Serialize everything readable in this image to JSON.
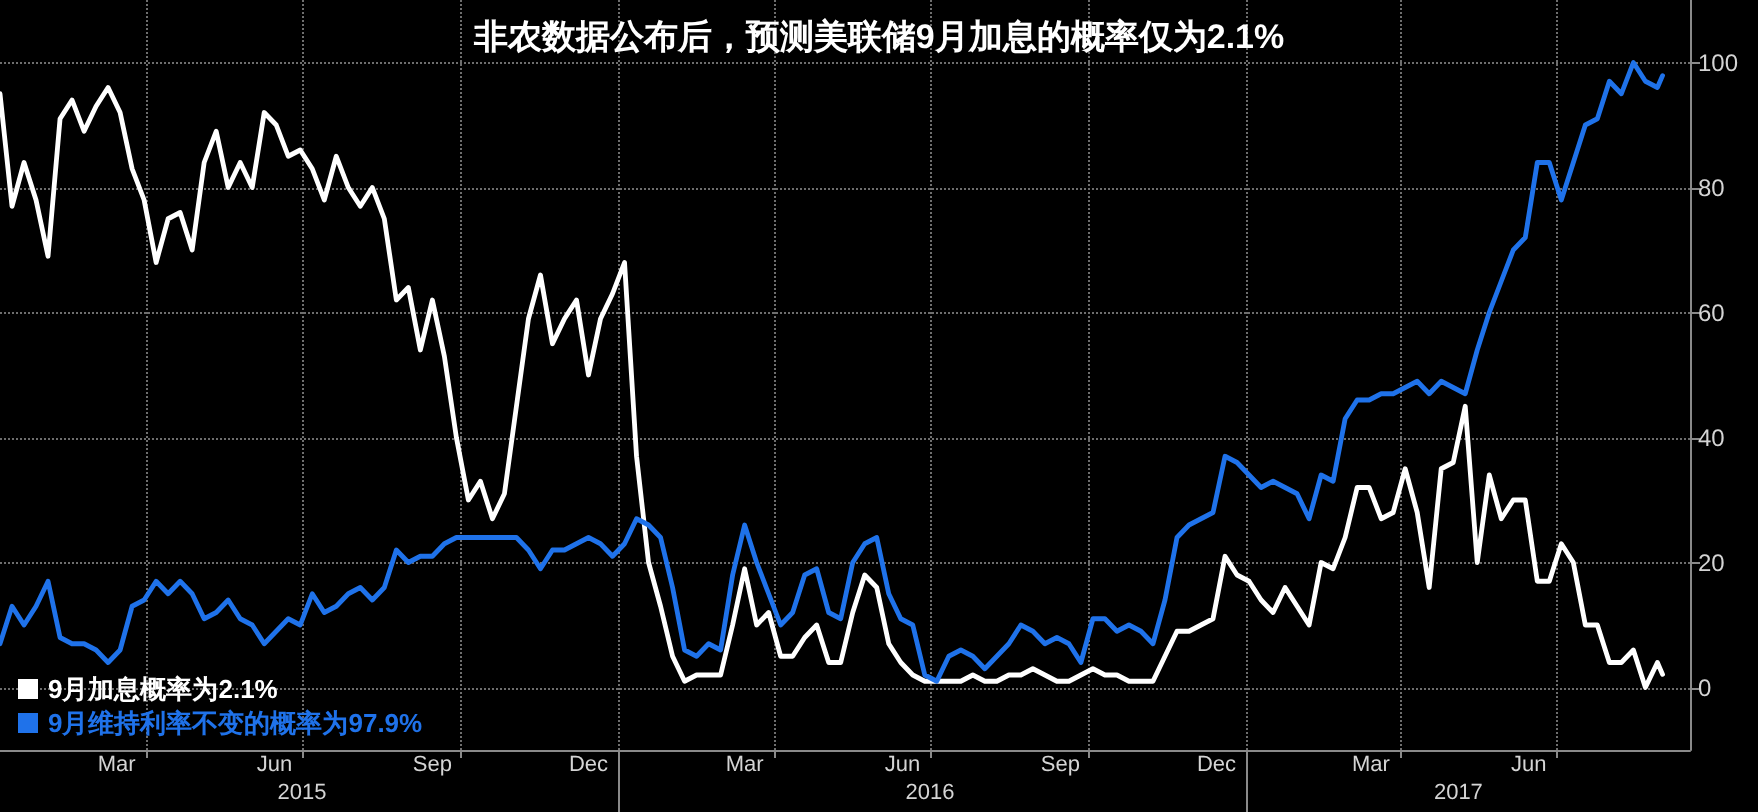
{
  "chart_data": {
    "type": "line",
    "title": "非农数据公布后，预测美联储9月加息的概率仅为2.1%",
    "x": [
      "2015-01-06",
      "2015-01-13",
      "2015-01-20",
      "2015-01-27",
      "2015-02-03",
      "2015-02-10",
      "2015-02-17",
      "2015-02-24",
      "2015-03-03",
      "2015-03-10",
      "2015-03-17",
      "2015-03-24",
      "2015-03-31",
      "2015-04-07",
      "2015-04-14",
      "2015-04-21",
      "2015-04-28",
      "2015-05-05",
      "2015-05-12",
      "2015-05-19",
      "2015-05-26",
      "2015-06-02",
      "2015-06-09",
      "2015-06-16",
      "2015-06-23",
      "2015-06-30",
      "2015-07-07",
      "2015-07-14",
      "2015-07-21",
      "2015-07-28",
      "2015-08-04",
      "2015-08-11",
      "2015-08-18",
      "2015-08-25",
      "2015-09-01",
      "2015-09-08",
      "2015-09-15",
      "2015-09-22",
      "2015-09-29",
      "2015-10-06",
      "2015-10-13",
      "2015-10-20",
      "2015-10-27",
      "2015-11-03",
      "2015-11-10",
      "2015-11-17",
      "2015-11-24",
      "2015-12-01",
      "2015-12-08",
      "2015-12-15",
      "2015-12-22",
      "2015-12-29",
      "2016-01-05",
      "2016-01-12",
      "2016-01-19",
      "2016-01-26",
      "2016-02-02",
      "2016-02-09",
      "2016-02-16",
      "2016-02-23",
      "2016-03-01",
      "2016-03-08",
      "2016-03-15",
      "2016-03-22",
      "2016-03-29",
      "2016-04-05",
      "2016-04-12",
      "2016-04-19",
      "2016-04-26",
      "2016-05-03",
      "2016-05-10",
      "2016-05-17",
      "2016-05-24",
      "2016-05-31",
      "2016-06-07",
      "2016-06-14",
      "2016-06-21",
      "2016-06-28",
      "2016-07-05",
      "2016-07-12",
      "2016-07-19",
      "2016-07-26",
      "2016-08-02",
      "2016-08-09",
      "2016-08-16",
      "2016-08-23",
      "2016-08-30",
      "2016-09-06",
      "2016-09-13",
      "2016-09-20",
      "2016-09-27",
      "2016-10-04",
      "2016-10-11",
      "2016-10-18",
      "2016-10-25",
      "2016-11-01",
      "2016-11-08",
      "2016-11-15",
      "2016-11-22",
      "2016-11-29",
      "2016-12-06",
      "2016-12-13",
      "2016-12-20",
      "2016-12-27",
      "2017-01-03",
      "2017-01-10",
      "2017-01-17",
      "2017-01-24",
      "2017-01-31",
      "2017-02-07",
      "2017-02-14",
      "2017-02-21",
      "2017-02-28",
      "2017-03-07",
      "2017-03-14",
      "2017-03-21",
      "2017-03-28",
      "2017-04-04",
      "2017-04-11",
      "2017-04-18",
      "2017-04-25",
      "2017-05-02",
      "2017-05-09",
      "2017-05-16",
      "2017-05-23",
      "2017-05-30",
      "2017-06-06",
      "2017-06-13",
      "2017-06-20",
      "2017-06-27",
      "2017-07-04",
      "2017-07-11",
      "2017-07-18",
      "2017-07-25",
      "2017-08-01",
      "2017-08-08",
      "2017-08-15",
      "2017-08-22",
      "2017-08-29",
      "2017-09-01"
    ],
    "series": [
      {
        "name": "9月加息概率为2.1%",
        "color": "#ffffff",
        "values": [
          95,
          77,
          84,
          78,
          69,
          91,
          94,
          89,
          93,
          96,
          92,
          83,
          78,
          68,
          75,
          76,
          70,
          84,
          89,
          80,
          84,
          80,
          92,
          90,
          85,
          86,
          83,
          78,
          85,
          80,
          77,
          80,
          75,
          62,
          64,
          54,
          62,
          53,
          40,
          30,
          33,
          27,
          31,
          45,
          59,
          66,
          55,
          59,
          62,
          50,
          59,
          63,
          68,
          37,
          20,
          13,
          5,
          1,
          2,
          2,
          2,
          10,
          19,
          10,
          12,
          5,
          5,
          8,
          10,
          4,
          4,
          12,
          18,
          16,
          7,
          4,
          2,
          1,
          1,
          1,
          1,
          2,
          1,
          1,
          2,
          2,
          3,
          2,
          1,
          1,
          2,
          3,
          2,
          2,
          1,
          1,
          1,
          5,
          9,
          9,
          10,
          11,
          21,
          18,
          17,
          14,
          12,
          16,
          13,
          10,
          20,
          19,
          24,
          32,
          32,
          27,
          28,
          35,
          28,
          16,
          35,
          36,
          45,
          20,
          34,
          27,
          30,
          30,
          17,
          17,
          23,
          20,
          10,
          10,
          4,
          4,
          6,
          0,
          4,
          2.1
        ]
      },
      {
        "name": "9月维持利率不变的概率为97.9%",
        "color": "#1f72ea",
        "values": [
          7,
          13,
          10,
          13,
          17,
          8,
          7,
          7,
          6,
          4,
          6,
          13,
          14,
          17,
          15,
          17,
          15,
          11,
          12,
          14,
          11,
          10,
          7,
          9,
          11,
          10,
          15,
          12,
          13,
          15,
          16,
          14,
          16,
          22,
          20,
          21,
          21,
          23,
          24,
          24,
          24,
          24,
          24,
          24,
          22,
          19,
          22,
          22,
          23,
          24,
          23,
          21,
          23,
          27,
          26,
          24,
          16,
          6,
          5,
          7,
          6,
          18,
          26,
          20,
          15,
          10,
          12,
          18,
          19,
          12,
          11,
          20,
          23,
          24,
          15,
          11,
          10,
          2,
          1,
          5,
          6,
          5,
          3,
          5,
          7,
          10,
          9,
          7,
          8,
          7,
          4,
          11,
          11,
          9,
          10,
          9,
          7,
          14,
          24,
          26,
          27,
          28,
          37,
          36,
          34,
          32,
          33,
          32,
          31,
          27,
          34,
          33,
          43,
          46,
          46,
          47,
          47,
          48,
          49,
          47,
          49,
          48,
          47,
          54,
          60,
          65,
          70,
          72,
          84,
          84,
          78,
          84,
          90,
          91,
          97,
          95,
          100,
          97,
          96,
          97.9
        ]
      }
    ],
    "xlim": [
      "2015-01-06",
      "2017-09-17"
    ],
    "xticks": [
      {
        "value": "2015-03-15",
        "label": "Mar"
      },
      {
        "value": "2015-06-15",
        "label": "Jun"
      },
      {
        "value": "2015-09-15",
        "label": "Sep"
      },
      {
        "value": "2015-12-15",
        "label": "Dec"
      },
      {
        "value": "2016-03-15",
        "label": "Mar"
      },
      {
        "value": "2016-06-15",
        "label": "Jun"
      },
      {
        "value": "2016-09-15",
        "label": "Sep"
      },
      {
        "value": "2016-12-15",
        "label": "Dec"
      },
      {
        "value": "2017-03-15",
        "label": "Mar"
      },
      {
        "value": "2017-06-15",
        "label": "Jun"
      },
      {
        "value": "2015-04-01",
        "label": null
      },
      {
        "value": "2015-07-01",
        "label": null
      },
      {
        "value": "2015-10-01",
        "label": null
      },
      {
        "value": "2016-01-01",
        "label": null
      },
      {
        "value": "2016-04-01",
        "label": null
      },
      {
        "value": "2016-07-01",
        "label": null
      },
      {
        "value": "2016-10-01",
        "label": null
      },
      {
        "value": "2017-01-01",
        "label": null
      },
      {
        "value": "2017-04-01",
        "label": null
      },
      {
        "value": "2017-07-01",
        "label": null
      }
    ],
    "x2lim": [
      "2015-01-06",
      "2017-09-17"
    ],
    "x2ticks": [
      {
        "value": "2015-07-01",
        "label": "2015"
      },
      {
        "value": "2016-01-01",
        "label": null
      },
      {
        "value": "2016-07-01",
        "label": "2016"
      },
      {
        "value": "2017-01-01",
        "label": null
      },
      {
        "value": "2017-05-05",
        "label": "2017"
      }
    ],
    "ylim": [
      -10,
      110
    ],
    "yticks": [
      0,
      20,
      40,
      60,
      80,
      100
    ],
    "grid": true,
    "legend": "bottom left"
  }
}
